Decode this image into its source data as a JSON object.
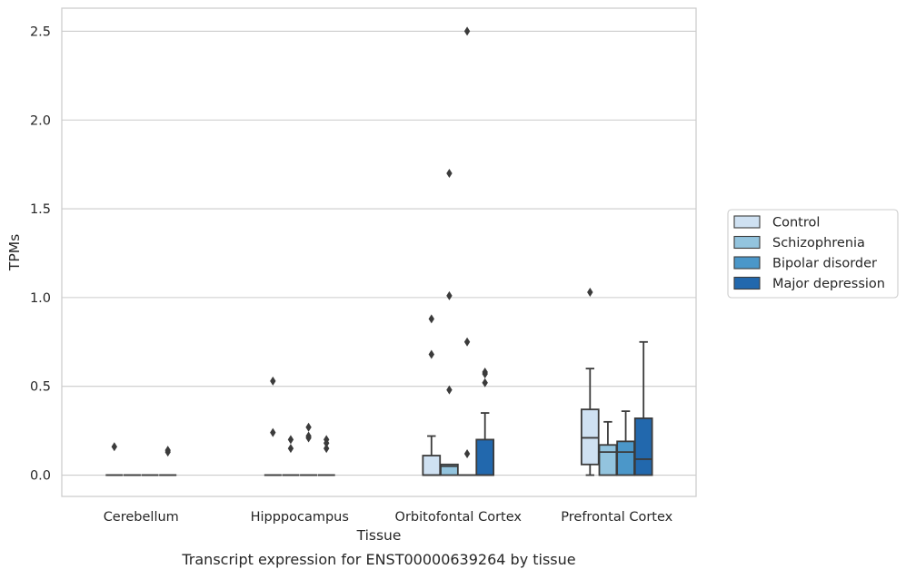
{
  "chart_data": {
    "type": "box",
    "title": "",
    "caption": "Transcript expression for ENST00000639264 by tissue",
    "xlabel": "Tissue",
    "ylabel": "TPMs",
    "ylim": [
      -0.12,
      2.63
    ],
    "yticks": [
      0.0,
      0.5,
      1.0,
      1.5,
      2.0,
      2.5
    ],
    "ytick_labels": [
      "0.0",
      "0.5",
      "1.0",
      "1.5",
      "2.0",
      "2.5"
    ],
    "grid": "horizontal",
    "legend_position": "right",
    "categories": [
      "Cerebellum",
      "Hipppocampus",
      "Orbitofontal Cortex",
      "Prefrontal Cortex"
    ],
    "series": [
      {
        "name": "Control",
        "color": "#cfe1f2",
        "boxes": [
          {
            "q1": 0,
            "median": 0,
            "q3": 0,
            "whislo": 0,
            "whishi": 0,
            "fliers": [
              0.16
            ]
          },
          {
            "q1": 0,
            "median": 0,
            "q3": 0,
            "whislo": 0,
            "whishi": 0,
            "fliers": [
              0.53,
              0.24
            ]
          },
          {
            "q1": 0,
            "median": 0,
            "q3": 0.11,
            "whislo": 0,
            "whishi": 0.22,
            "fliers": [
              0.88,
              0.68
            ]
          },
          {
            "q1": 0.06,
            "median": 0.21,
            "q3": 0.37,
            "whislo": 0,
            "whishi": 0.6,
            "fliers": [
              1.03
            ]
          }
        ]
      },
      {
        "name": "Schizophrenia",
        "color": "#93c4de",
        "boxes": [
          {
            "q1": 0,
            "median": 0,
            "q3": 0,
            "whislo": 0,
            "whishi": 0,
            "fliers": []
          },
          {
            "q1": 0,
            "median": 0,
            "q3": 0,
            "whislo": 0,
            "whishi": 0,
            "fliers": [
              0.2,
              0.15
            ]
          },
          {
            "q1": 0,
            "median": 0.05,
            "q3": 0.06,
            "whislo": 0,
            "whishi": 0.06,
            "fliers": [
              1.7,
              1.01,
              0.48
            ]
          },
          {
            "q1": 0,
            "median": 0.13,
            "q3": 0.17,
            "whislo": 0,
            "whishi": 0.3,
            "fliers": []
          }
        ]
      },
      {
        "name": "Bipolar disorder",
        "color": "#4b97c9",
        "boxes": [
          {
            "q1": 0,
            "median": 0,
            "q3": 0,
            "whislo": 0,
            "whishi": 0,
            "fliers": []
          },
          {
            "q1": 0,
            "median": 0,
            "q3": 0,
            "whislo": 0,
            "whishi": 0,
            "fliers": [
              0.27,
              0.22,
              0.21
            ]
          },
          {
            "q1": 0,
            "median": 0,
            "q3": 0,
            "whislo": 0,
            "whishi": 0,
            "fliers": [
              2.5,
              0.75,
              0.12
            ]
          },
          {
            "q1": 0,
            "median": 0.13,
            "q3": 0.19,
            "whislo": 0,
            "whishi": 0.36,
            "fliers": []
          }
        ]
      },
      {
        "name": "Major depression",
        "color": "#2268ad",
        "boxes": [
          {
            "q1": 0,
            "median": 0,
            "q3": 0,
            "whislo": 0,
            "whishi": 0,
            "fliers": [
              0.14,
              0.13
            ]
          },
          {
            "q1": 0,
            "median": 0,
            "q3": 0,
            "whislo": 0,
            "whishi": 0,
            "fliers": [
              0.2,
              0.18,
              0.15
            ]
          },
          {
            "q1": 0,
            "median": 0,
            "q3": 0.2,
            "whislo": 0,
            "whishi": 0.35,
            "fliers": [
              0.58,
              0.57,
              0.52
            ]
          },
          {
            "q1": 0,
            "median": 0.09,
            "q3": 0.32,
            "whislo": 0,
            "whishi": 0.75,
            "fliers": []
          }
        ]
      }
    ],
    "colors": {
      "grid": "#cccccc",
      "frame": "#cccccc",
      "box_edge": "#3b3b3b",
      "text": "#262626"
    }
  }
}
